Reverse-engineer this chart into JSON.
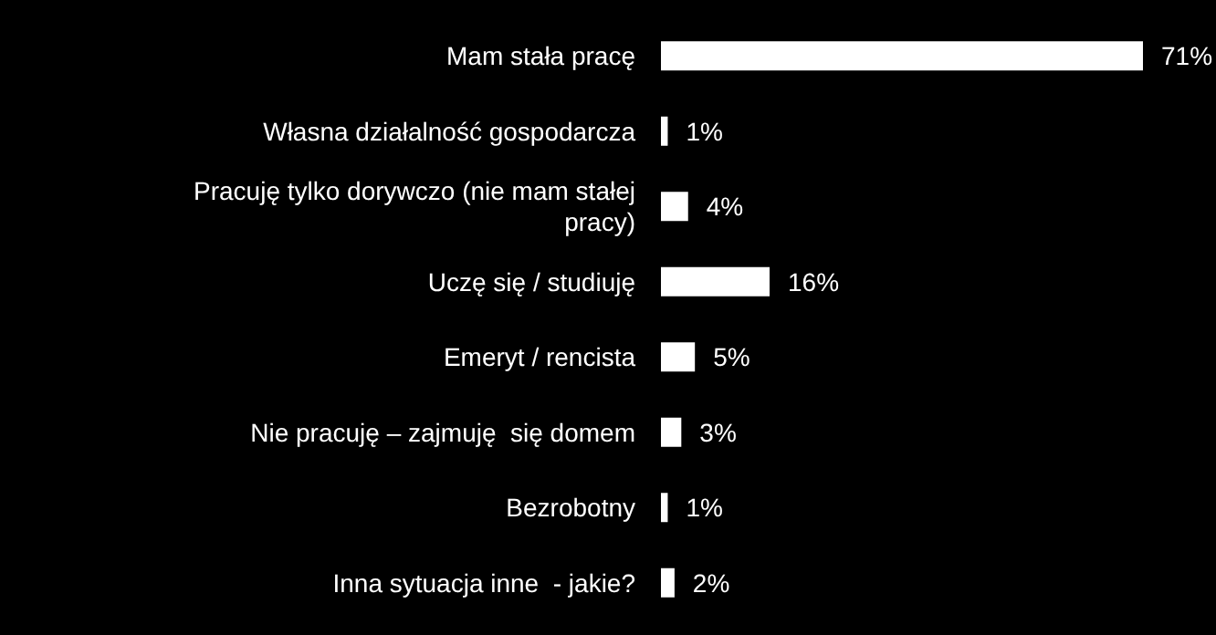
{
  "chart_data": {
    "type": "bar",
    "orientation": "horizontal",
    "categories": [
      "Mam stała pracę",
      "Własna działalność gospodarcza",
      "Pracuję tylko dorywczo (nie mam stałej pracy)",
      "Uczę się / studiuję",
      "Emeryt / rencista",
      "Nie pracuję – zajmuję  się domem",
      "Bezrobotny",
      "Inna sytuacja inne  - jakie?"
    ],
    "values": [
      71,
      1,
      4,
      16,
      5,
      3,
      1,
      2
    ],
    "value_labels": [
      "71%",
      "1%",
      "4%",
      "16%",
      "5%",
      "3%",
      "1%",
      "2%"
    ],
    "color": "#ffffff"
  }
}
